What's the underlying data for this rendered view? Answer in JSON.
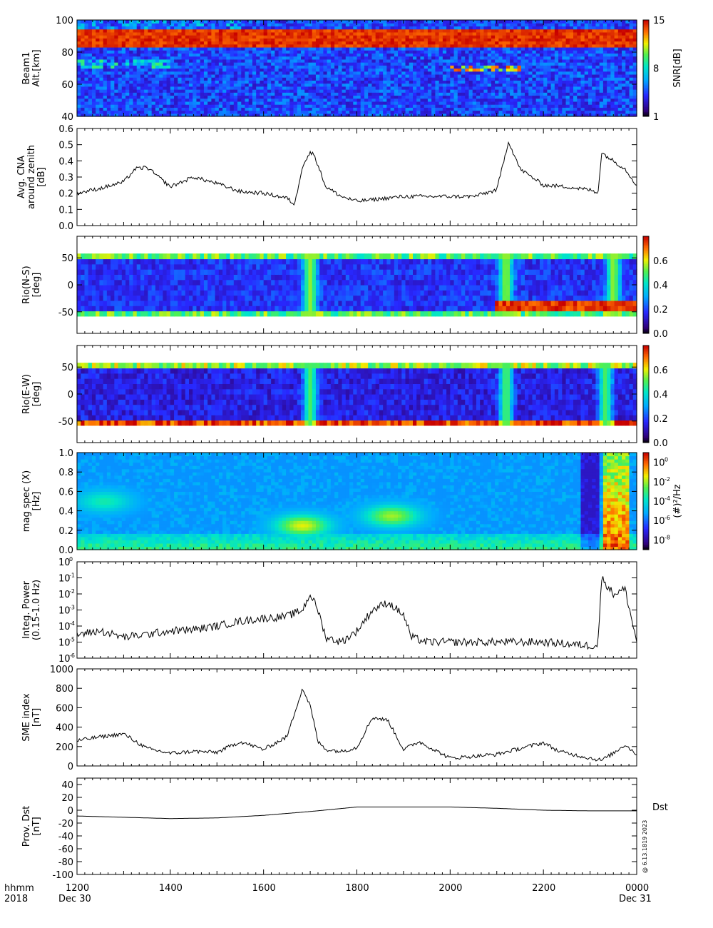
{
  "chart_data": [
    {
      "type": "heatmap",
      "ylabel": [
        "Beam1",
        "Alt.[km]"
      ],
      "ylim": [
        40,
        100
      ],
      "yticks": [
        "100",
        "80",
        "60",
        "40"
      ],
      "colorbar": {
        "label": "SNR[dB]",
        "ticks": [
          "15",
          "8",
          "1"
        ],
        "range": [
          1,
          15
        ]
      },
      "features": [
        {
          "kind": "band",
          "y_range": [
            84,
            94
          ],
          "value": 15
        },
        {
          "kind": "patch",
          "x_range": [
            "1200",
            "1530"
          ],
          "y_range": [
            94,
            100
          ],
          "value": 6
        },
        {
          "kind": "patch",
          "x_range": [
            "1200",
            "1400"
          ],
          "y_range": [
            70,
            75
          ],
          "value": 8
        },
        {
          "kind": "patch",
          "x_range": [
            "2000",
            "2130"
          ],
          "y_range": [
            69,
            72
          ],
          "value": 12
        }
      ]
    },
    {
      "type": "line",
      "ylabel": [
        "Avg. CNA",
        "around zenith",
        "[dB]"
      ],
      "ylim": [
        0,
        0.6
      ],
      "yticks": [
        "0.6",
        "0.5",
        "0.4",
        "0.3",
        "0.2",
        "0.1",
        "0.0"
      ],
      "x": [
        "1200",
        "1230",
        "1300",
        "1315",
        "1330",
        "1400",
        "1430",
        "1500",
        "1530",
        "1600",
        "1630",
        "1640",
        "1650",
        "1700",
        "1705",
        "1720",
        "1740",
        "1800",
        "1900",
        "2000",
        "2030",
        "2100",
        "2115",
        "2130",
        "2200",
        "2230",
        "2300",
        "2310",
        "2315",
        "2330",
        "2345",
        "0000"
      ],
      "values": [
        0.2,
        0.23,
        0.27,
        0.35,
        0.36,
        0.24,
        0.3,
        0.26,
        0.21,
        0.2,
        0.17,
        0.13,
        0.37,
        0.45,
        0.44,
        0.24,
        0.18,
        0.15,
        0.18,
        0.18,
        0.18,
        0.22,
        0.52,
        0.35,
        0.25,
        0.24,
        0.22,
        0.2,
        0.45,
        0.4,
        0.35,
        0.25
      ]
    },
    {
      "type": "heatmap",
      "ylabel": [
        "Rio(N-S)",
        "[deg]"
      ],
      "ylim": [
        -90,
        90
      ],
      "yticks": [
        "50",
        "0",
        "-50"
      ],
      "colorbar": {
        "label": "",
        "ticks": [
          "0.6",
          "0.4",
          "0.2",
          "0.0"
        ],
        "range": [
          0,
          0.8
        ]
      },
      "features": [
        {
          "kind": "background",
          "value": 0.18
        },
        {
          "kind": "edge",
          "y_range": [
            45,
            58
          ],
          "value": 0.5
        },
        {
          "kind": "edge",
          "y_range": [
            -58,
            -45
          ],
          "value": 0.5
        },
        {
          "kind": "column",
          "x": "1700",
          "value": 0.55
        },
        {
          "kind": "column",
          "x": "2112",
          "value": 0.55
        },
        {
          "kind": "column",
          "x": "2330",
          "value": 0.55
        },
        {
          "kind": "patch",
          "x_range": [
            "2100",
            "0000"
          ],
          "y_range": [
            -48,
            -30
          ],
          "value": 0.75
        }
      ]
    },
    {
      "type": "heatmap",
      "ylabel": [
        "Rio(E-W)",
        "[deg]"
      ],
      "ylim": [
        -90,
        90
      ],
      "yticks": [
        "50",
        "0",
        "-50"
      ],
      "colorbar": {
        "label": "",
        "ticks": [
          "0.6",
          "0.4",
          "0.2",
          "0.0"
        ],
        "range": [
          0,
          0.8
        ]
      },
      "features": [
        {
          "kind": "background",
          "value": 0.15
        },
        {
          "kind": "edge",
          "y_range": [
            45,
            58
          ],
          "value": 0.55
        },
        {
          "kind": "edge",
          "y_range": [
            -58,
            -45
          ],
          "value": 0.75
        },
        {
          "kind": "column",
          "x": "1700",
          "value": 0.5
        },
        {
          "kind": "column",
          "x": "2112",
          "value": 0.5
        },
        {
          "kind": "column",
          "x": "2320",
          "value": 0.5
        }
      ]
    },
    {
      "type": "heatmap",
      "ylabel": [
        "mag spec (X)",
        "[Hz]"
      ],
      "ylim": [
        0,
        1.0
      ],
      "yticks": [
        "1.0",
        "0.8",
        "0.6",
        "0.4",
        "0.2",
        "0.0"
      ],
      "colorbar": {
        "label": "(#)²/Hz",
        "ticks": [
          {
            "base": "10",
            "exp": "0"
          },
          {
            "base": "10",
            "exp": "-2"
          },
          {
            "base": "10",
            "exp": "-4"
          },
          {
            "base": "10",
            "exp": "-6"
          },
          {
            "base": "10",
            "exp": "-8"
          }
        ],
        "log_range": [
          -9,
          1
        ]
      },
      "features": [
        {
          "kind": "background",
          "log_value": -5.5
        },
        {
          "kind": "low_freq",
          "y_range": [
            0,
            0.15
          ],
          "log_value": -3
        },
        {
          "kind": "blob",
          "x": "1650",
          "y": 0.25,
          "log_value": -1.5
        },
        {
          "kind": "blob",
          "x": "1845",
          "y": 0.35,
          "log_value": -2
        },
        {
          "kind": "blob",
          "x": "1235",
          "y": 0.5,
          "log_value": -3.5
        },
        {
          "kind": "burst",
          "x_range": [
            "2315",
            "2350"
          ],
          "log_value": 0
        }
      ]
    },
    {
      "type": "line",
      "ylabel": [
        "Integ. Power",
        "(0.15-1.0 Hz)"
      ],
      "yscale": "log",
      "ylim": [
        1e-06,
        1
      ],
      "yticks": [
        {
          "base": "10",
          "exp": "0"
        },
        {
          "base": "10",
          "exp": "-1"
        },
        {
          "base": "10",
          "exp": "-2"
        },
        {
          "base": "10",
          "exp": "-3"
        },
        {
          "base": "10",
          "exp": "-4"
        },
        {
          "base": "10",
          "exp": "-5"
        },
        {
          "base": "10",
          "exp": "-6"
        }
      ],
      "x": [
        "1200",
        "1230",
        "1300",
        "1330",
        "1400",
        "1430",
        "1500",
        "1530",
        "1600",
        "1630",
        "1650",
        "1700",
        "1710",
        "1720",
        "1740",
        "1800",
        "1820",
        "1840",
        "1900",
        "1910",
        "1930",
        "2000",
        "2100",
        "2200",
        "2300",
        "2310",
        "2315",
        "2330",
        "2345",
        "0000"
      ],
      "values": [
        3e-05,
        5e-05,
        2e-05,
        3e-05,
        5e-05,
        6e-05,
        0.0001,
        0.0002,
        0.0003,
        0.0004,
        0.001,
        0.01,
        0.001,
        2e-05,
        1e-05,
        5e-05,
        0.001,
        0.003,
        0.0005,
        2e-05,
        1e-05,
        1e-05,
        1e-05,
        1e-05,
        6e-06,
        7e-06,
        0.1,
        0.01,
        0.02,
        1e-05
      ]
    },
    {
      "type": "line",
      "ylabel": [
        "SME index",
        "[nT]"
      ],
      "ylim": [
        0,
        1000
      ],
      "yticks": [
        "1000",
        "800",
        "600",
        "400",
        "200",
        "0"
      ],
      "x": [
        "1200",
        "1230",
        "1300",
        "1330",
        "1400",
        "1430",
        "1500",
        "1530",
        "1600",
        "1630",
        "1650",
        "1700",
        "1710",
        "1720",
        "1740",
        "1800",
        "1820",
        "1840",
        "1900",
        "1920",
        "2000",
        "2030",
        "2100",
        "2130",
        "2200",
        "2220",
        "2300",
        "2315",
        "2330",
        "2345",
        "0000"
      ],
      "values": [
        260,
        300,
        330,
        180,
        130,
        150,
        140,
        250,
        170,
        300,
        800,
        620,
        250,
        170,
        150,
        190,
        500,
        470,
        170,
        250,
        80,
        100,
        120,
        180,
        240,
        150,
        80,
        60,
        130,
        220,
        120
      ]
    },
    {
      "type": "line",
      "ylabel": [
        "Prov. Dst",
        "[nT]"
      ],
      "ylim": [
        -100,
        50
      ],
      "yticks": [
        "40",
        "20",
        "0",
        "-20",
        "-40",
        "-60",
        "-80",
        "-100"
      ],
      "series_label": "Dst",
      "stamp": "@ 6.13.1819 2023",
      "x": [
        "1200",
        "1300",
        "1400",
        "1500",
        "1600",
        "1700",
        "1800",
        "1900",
        "2000",
        "2100",
        "2200",
        "2300",
        "0000"
      ],
      "values": [
        -9,
        -11,
        -13,
        -12,
        -8,
        -2,
        5,
        5,
        5,
        3,
        0,
        -1,
        -1
      ]
    }
  ],
  "x_axis": {
    "label_top": "hhmm",
    "label_bottom": "2018",
    "ticks": [
      "1200",
      "1400",
      "1600",
      "1800",
      "2000",
      "2200",
      "0000"
    ],
    "start_date": "Dec 30",
    "end_date": "Dec 31"
  }
}
